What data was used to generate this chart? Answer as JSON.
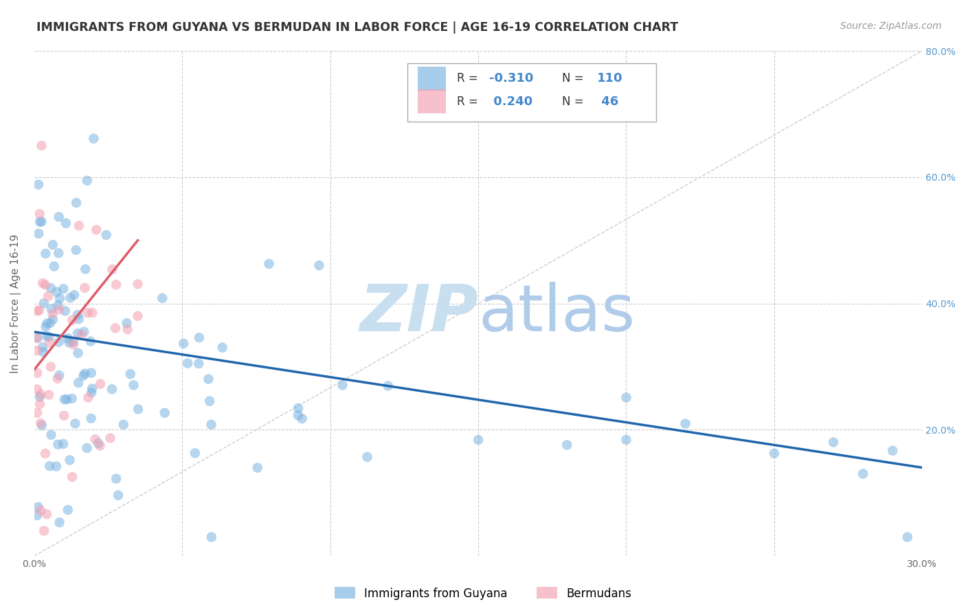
{
  "title": "IMMIGRANTS FROM GUYANA VS BERMUDAN IN LABOR FORCE | AGE 16-19 CORRELATION CHART",
  "source": "Source: ZipAtlas.com",
  "ylabel": "In Labor Force | Age 16-19",
  "xlim": [
    0.0,
    0.3
  ],
  "ylim": [
    0.0,
    0.8
  ],
  "guyana_color": "#7ab3e0",
  "bermudan_color": "#f4a0b0",
  "guyana_line_color": "#2166ac",
  "bermudan_line_color": "#e05a6a",
  "diagonal_color": "#cccccc",
  "background_color": "#ffffff",
  "grid_color": "#cccccc",
  "title_color": "#333333",
  "right_ytick_color": "#5599cc",
  "legend_text_color": "#4488cc",
  "watermark_zip": "ZIP",
  "watermark_atlas": "atlas",
  "guyana_line_x0": 0.0,
  "guyana_line_y0": 0.355,
  "guyana_line_x1": 0.3,
  "guyana_line_y1": 0.14,
  "bermudan_line_x0": 0.0,
  "bermudan_line_y0": 0.295,
  "bermudan_line_x1": 0.035,
  "bermudan_line_y1": 0.5
}
